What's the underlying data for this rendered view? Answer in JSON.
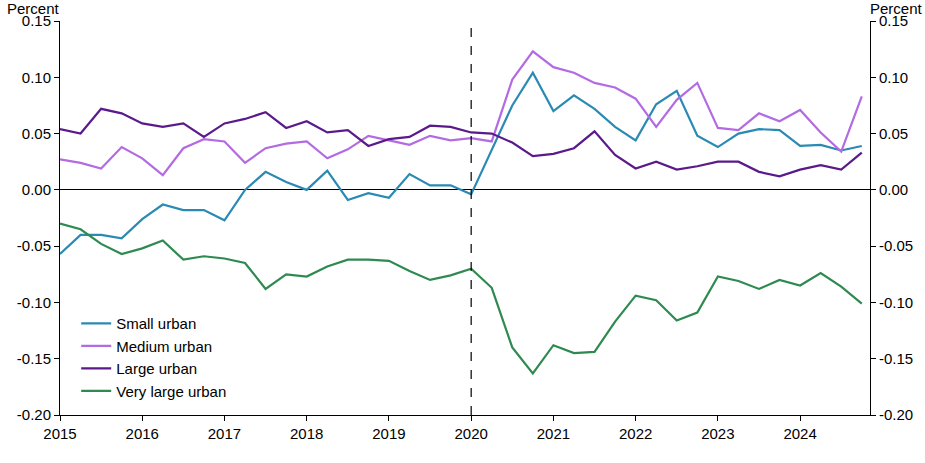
{
  "chart_data": {
    "type": "line",
    "ylabel": "Percent",
    "y2label": "Percent",
    "x": [
      2015,
      2015.25,
      2015.5,
      2015.75,
      2016,
      2016.25,
      2016.5,
      2016.75,
      2017,
      2017.25,
      2017.5,
      2017.75,
      2018,
      2018.25,
      2018.5,
      2018.75,
      2019,
      2019.25,
      2019.5,
      2019.75,
      2020,
      2020.25,
      2020.5,
      2020.75,
      2021,
      2021.25,
      2021.5,
      2021.75,
      2022,
      2022.25,
      2022.5,
      2022.75,
      2023,
      2023.25,
      2023.5,
      2023.75,
      2024,
      2024.25,
      2024.5,
      2024.75
    ],
    "series": [
      {
        "name": "Small urban",
        "color": "#2a8ab4",
        "values": [
          -0.057,
          -0.04,
          -0.04,
          -0.043,
          -0.026,
          -0.013,
          -0.018,
          -0.018,
          -0.027,
          0.0,
          0.016,
          0.007,
          0.0,
          0.017,
          -0.009,
          -0.003,
          -0.007,
          0.014,
          0.004,
          0.004,
          -0.004,
          0.035,
          0.075,
          0.104,
          0.07,
          0.084,
          0.072,
          0.056,
          0.044,
          0.076,
          0.088,
          0.048,
          0.038,
          0.05,
          0.054,
          0.053,
          0.039,
          0.04,
          0.035,
          0.039
        ]
      },
      {
        "name": "Medium urban",
        "color": "#b36be3",
        "values": [
          0.027,
          0.024,
          0.019,
          0.038,
          0.028,
          0.013,
          0.037,
          0.045,
          0.043,
          0.024,
          0.037,
          0.041,
          0.043,
          0.028,
          0.036,
          0.048,
          0.044,
          0.04,
          0.048,
          0.044,
          0.046,
          0.043,
          0.098,
          0.123,
          0.109,
          0.104,
          0.095,
          0.091,
          0.081,
          0.056,
          0.08,
          0.095,
          0.055,
          0.053,
          0.068,
          0.061,
          0.071,
          0.051,
          0.034,
          0.083
        ]
      },
      {
        "name": "Large urban",
        "color": "#5a1a8c",
        "values": [
          0.054,
          0.05,
          0.072,
          0.068,
          0.059,
          0.056,
          0.059,
          0.047,
          0.059,
          0.063,
          0.069,
          0.055,
          0.061,
          0.051,
          0.053,
          0.039,
          0.045,
          0.047,
          0.057,
          0.056,
          0.051,
          0.05,
          0.042,
          0.03,
          0.032,
          0.037,
          0.052,
          0.031,
          0.019,
          0.025,
          0.018,
          0.021,
          0.025,
          0.025,
          0.016,
          0.012,
          0.018,
          0.022,
          0.018,
          0.033
        ]
      },
      {
        "name": "Very large urban",
        "color": "#2e8a50",
        "values": [
          -0.03,
          -0.035,
          -0.048,
          -0.057,
          -0.052,
          -0.045,
          -0.062,
          -0.059,
          -0.061,
          -0.065,
          -0.088,
          -0.075,
          -0.077,
          -0.068,
          -0.062,
          -0.062,
          -0.063,
          -0.072,
          -0.08,
          -0.076,
          -0.07,
          -0.087,
          -0.14,
          -0.163,
          -0.138,
          -0.145,
          -0.144,
          -0.117,
          -0.094,
          -0.098,
          -0.116,
          -0.109,
          -0.077,
          -0.081,
          -0.088,
          -0.08,
          -0.085,
          -0.074,
          -0.086,
          -0.101
        ]
      }
    ],
    "xlim": [
      2015,
      2024.85
    ],
    "xticks": [
      2015,
      2016,
      2017,
      2018,
      2019,
      2020,
      2021,
      2022,
      2023,
      2024
    ],
    "ylim": [
      -0.2,
      0.15
    ],
    "yticks": [
      {
        "value": -0.2,
        "label": "-0.20"
      },
      -0.15,
      {
        "value": -0.1,
        "label": "-0.10"
      },
      -0.05,
      {
        "value": 0,
        "label": "0.00"
      },
      0.05,
      {
        "value": 0.1,
        "label": "0.10"
      },
      0.15
    ],
    "y2lim": [
      -0.2,
      0.15
    ],
    "y2ticks": [
      {
        "value": -0.2,
        "label": "-0.20"
      },
      -0.15,
      {
        "value": -0.1,
        "label": "-0.10"
      },
      -0.05,
      {
        "value": 0,
        "label": "0.00"
      },
      0.05,
      {
        "value": 0.1,
        "label": "0.10"
      },
      0.15
    ],
    "reference_lines": [
      {
        "x": 2020,
        "line_style": "dashed"
      }
    ],
    "grid": false,
    "legend": "lower left"
  }
}
